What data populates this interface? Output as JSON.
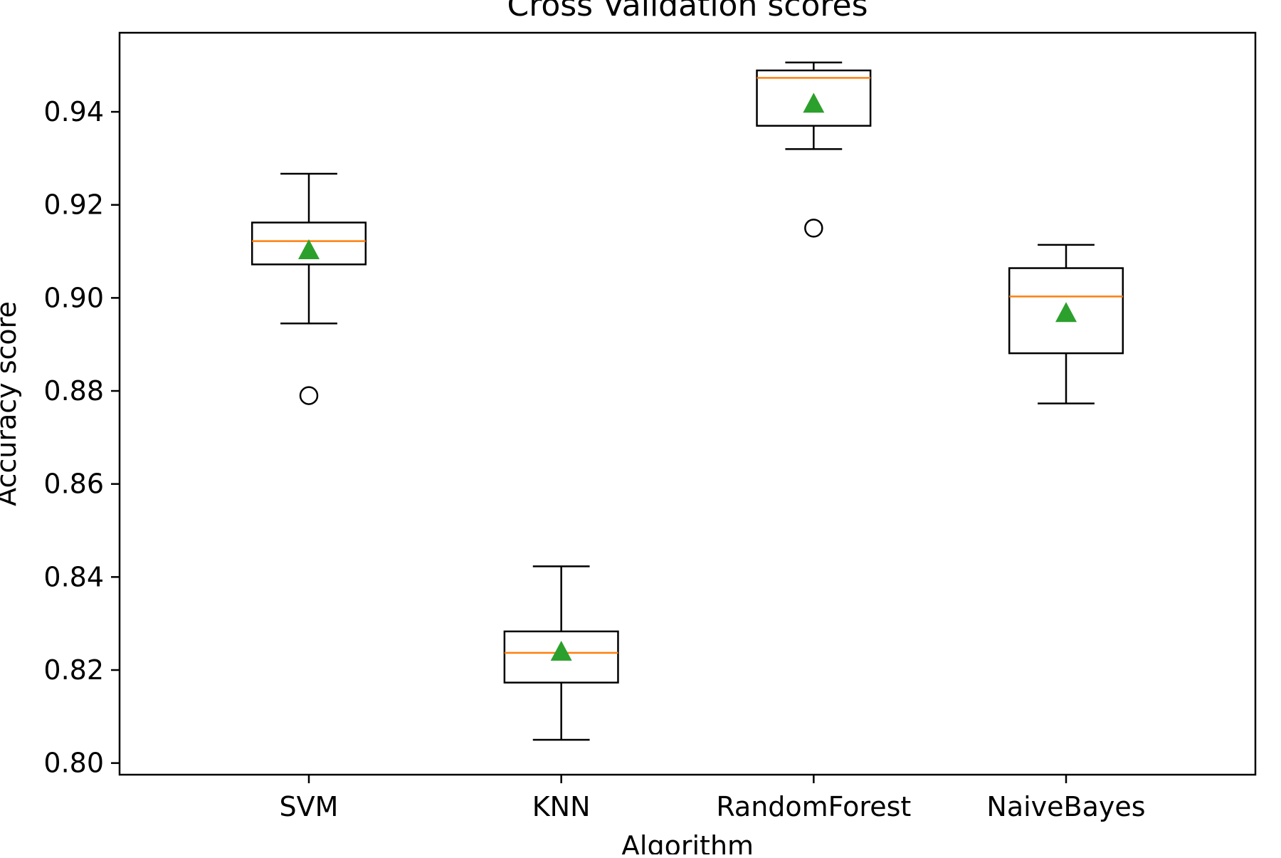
{
  "chart_data": {
    "type": "box",
    "title": "Cross Validation scores",
    "xlabel": "Algorithm",
    "ylabel": "Accuracy score",
    "ylim": [
      0.7975,
      0.957
    ],
    "yticks": [
      0.8,
      0.82,
      0.84,
      0.86,
      0.88,
      0.9,
      0.92,
      0.94
    ],
    "ytick_labels": [
      "0.80",
      "0.82",
      "0.84",
      "0.86",
      "0.88",
      "0.90",
      "0.92",
      "0.94"
    ],
    "grid": false,
    "categories": [
      "SVM",
      "KNN",
      "RandomForest",
      "NaiveBayes"
    ],
    "boxes": [
      {
        "label": "SVM",
        "whisker_low": 0.8945,
        "q1": 0.9072,
        "median": 0.9122,
        "q3": 0.9162,
        "whisker_high": 0.9267,
        "mean": 0.91,
        "outliers": [
          0.879
        ]
      },
      {
        "label": "KNN",
        "whisker_low": 0.805,
        "q1": 0.8173,
        "median": 0.8237,
        "q3": 0.8283,
        "whisker_high": 0.8423,
        "mean": 0.8237,
        "outliers": []
      },
      {
        "label": "RandomForest",
        "whisker_low": 0.932,
        "q1": 0.937,
        "median": 0.9473,
        "q3": 0.9489,
        "whisker_high": 0.9506,
        "mean": 0.9415,
        "outliers": [
          0.915
        ]
      },
      {
        "label": "NaiveBayes",
        "whisker_low": 0.8773,
        "q1": 0.8881,
        "median": 0.9003,
        "q3": 0.9064,
        "whisker_high": 0.9114,
        "mean": 0.8965,
        "outliers": []
      }
    ],
    "colors": {
      "box": "#000000",
      "median": "#ff7f0e",
      "mean": "#2ca02c",
      "outlier": "#000000"
    }
  }
}
